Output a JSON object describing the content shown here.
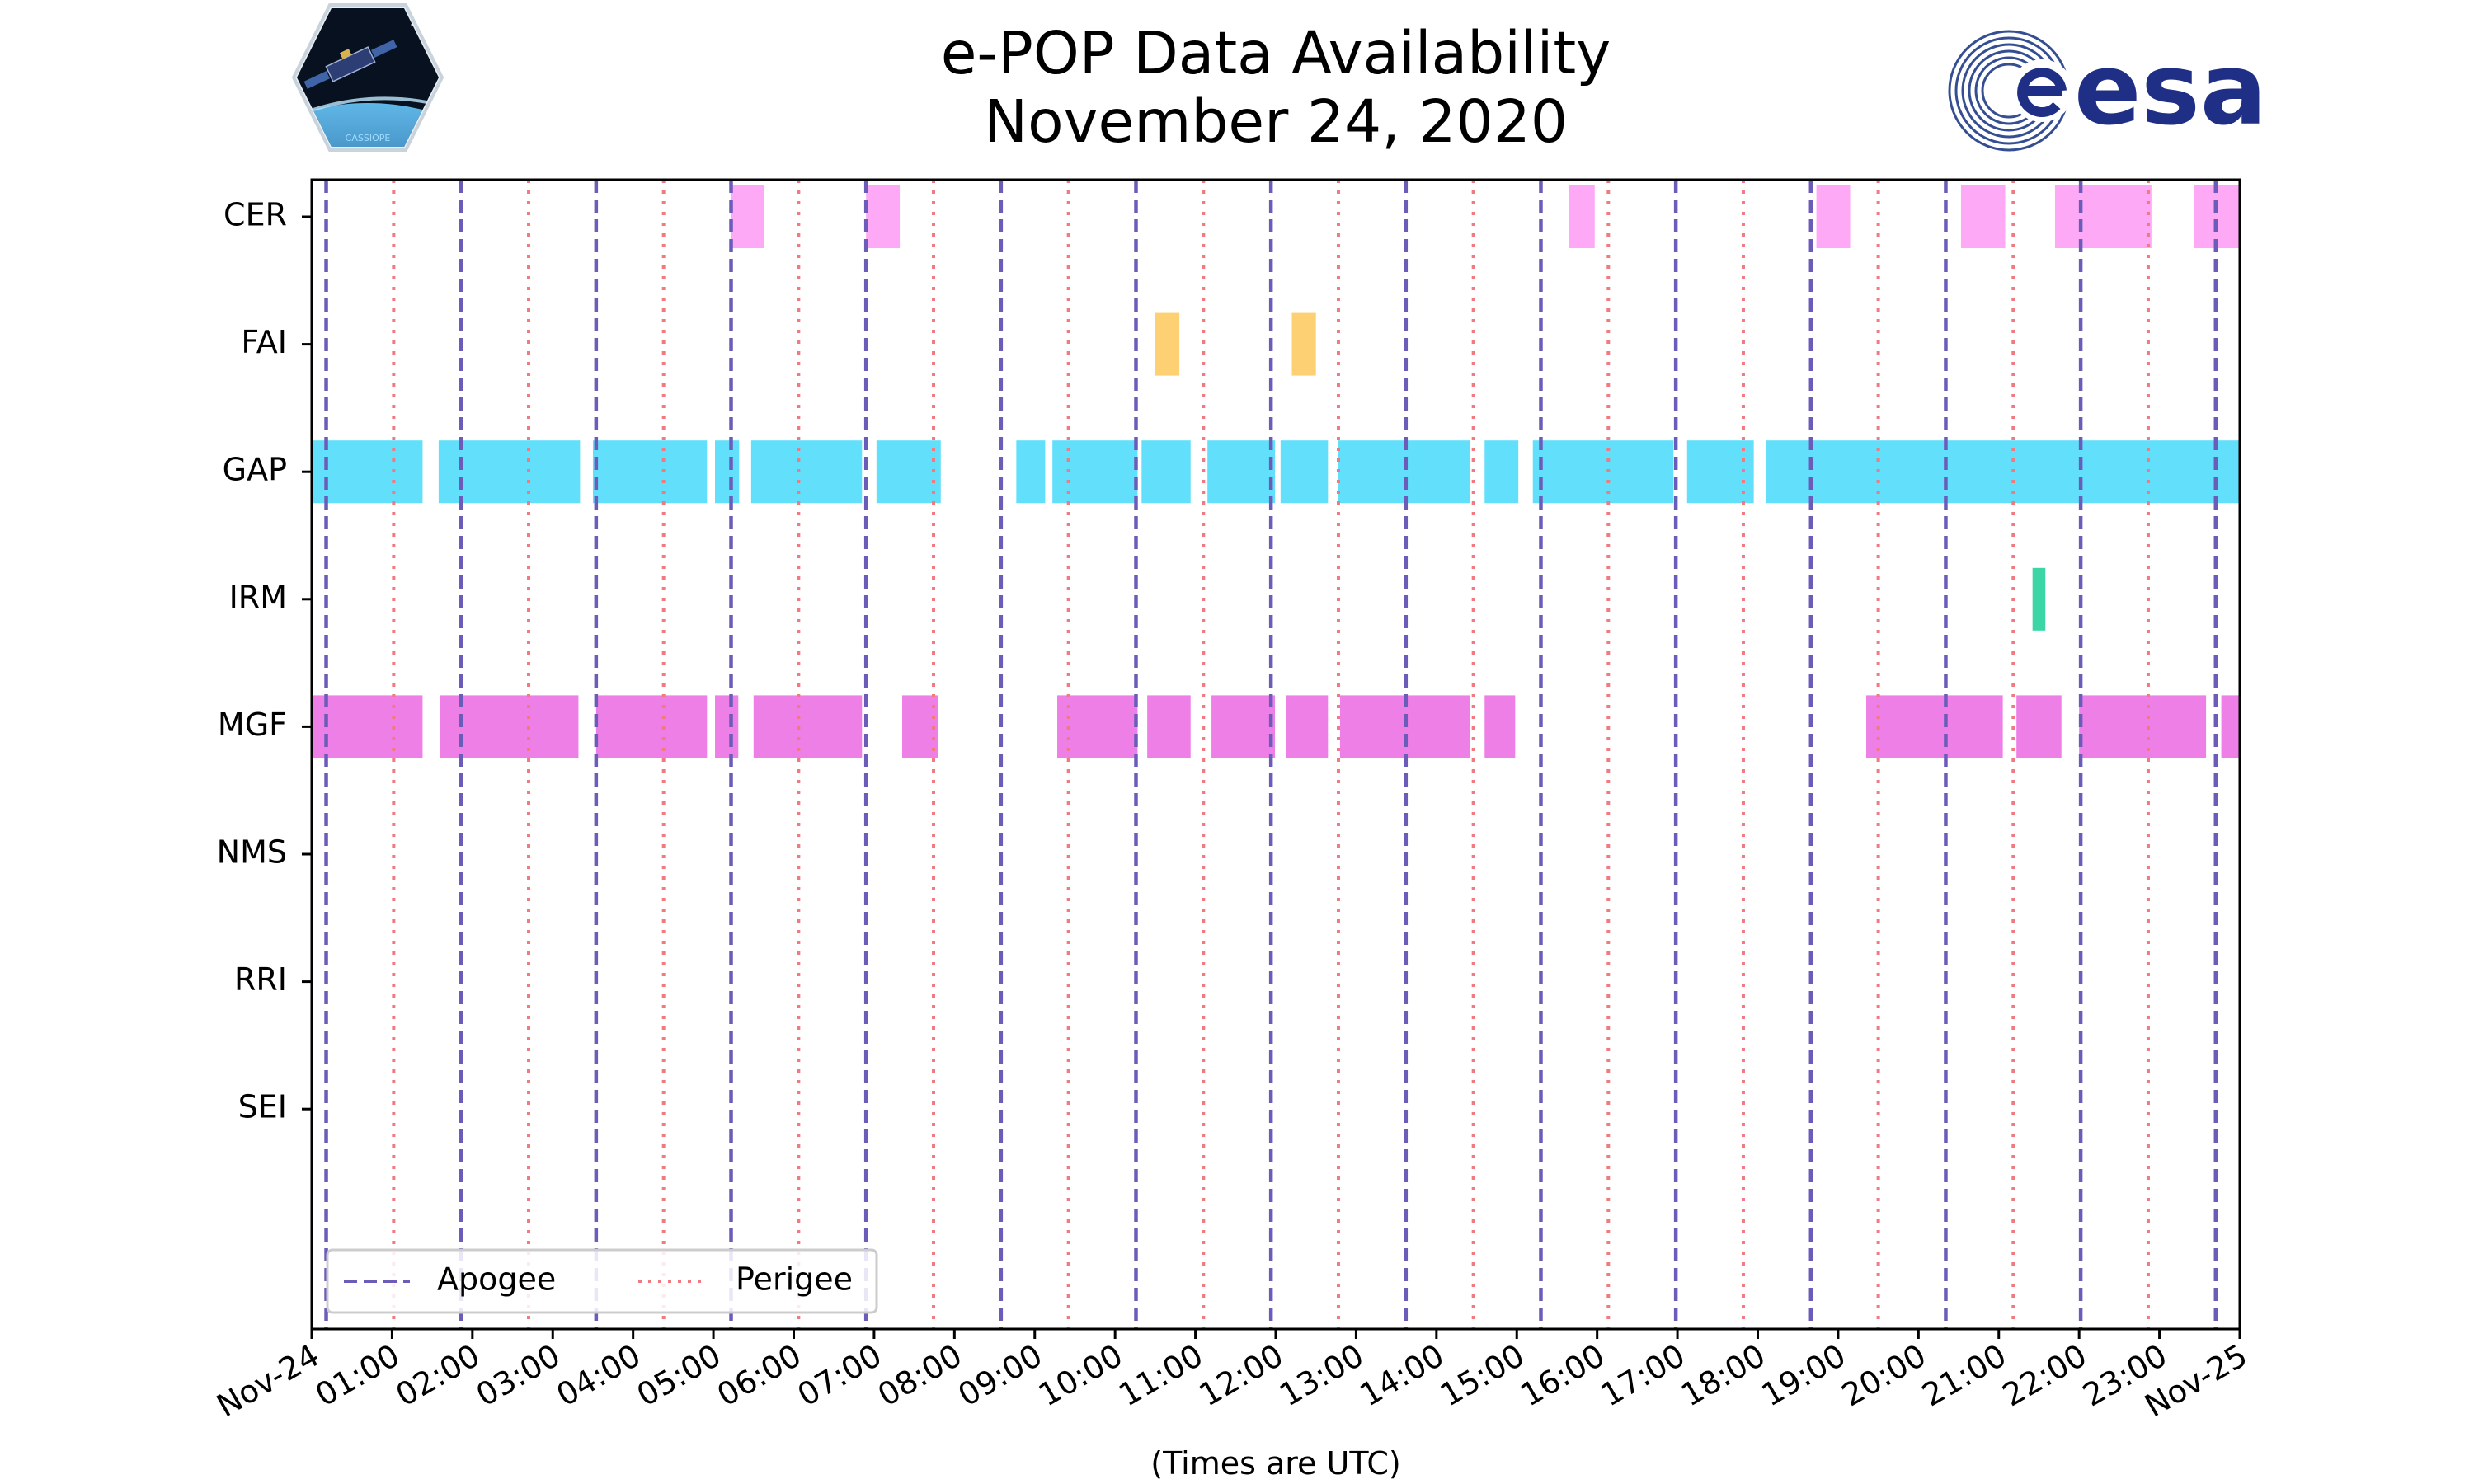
{
  "chart_data": {
    "type": "timeline",
    "title": [
      "e-POP Data Availability",
      "November 24, 2020"
    ],
    "xlabel": "(Times are UTC)",
    "xlim_hours": [
      0,
      24
    ],
    "x_tick_labels": [
      "Nov-24",
      "01:00",
      "02:00",
      "03:00",
      "04:00",
      "05:00",
      "06:00",
      "07:00",
      "08:00",
      "09:00",
      "10:00",
      "11:00",
      "12:00",
      "13:00",
      "14:00",
      "15:00",
      "16:00",
      "17:00",
      "18:00",
      "19:00",
      "20:00",
      "21:00",
      "22:00",
      "23:00",
      "Nov-25"
    ],
    "instruments": [
      "CER",
      "FAI",
      "GAP",
      "IRM",
      "MGF",
      "NMS",
      "RRI",
      "SEI"
    ],
    "colors": {
      "CER": "#fda9f6",
      "FAI": "#fdd173",
      "GAP": "#62dffa",
      "IRM": "#3cd6a6",
      "MGF": "#ee7fe7",
      "apogee": "#6a5cb8",
      "perigee": "#f07a80",
      "axis": "#000000"
    },
    "intervals_hours": {
      "CER": [
        [
          5.22,
          5.63
        ],
        [
          6.9,
          7.32
        ],
        [
          15.65,
          15.97
        ],
        [
          18.73,
          19.15
        ],
        [
          20.53,
          21.08
        ],
        [
          21.7,
          22.9
        ],
        [
          23.43,
          24.0
        ]
      ],
      "FAI": [
        [
          10.5,
          10.8
        ],
        [
          12.2,
          12.5
        ]
      ],
      "GAP": [
        [
          0.0,
          1.38
        ],
        [
          1.58,
          3.34
        ],
        [
          3.5,
          4.92
        ],
        [
          5.02,
          5.32
        ],
        [
          5.47,
          6.85
        ],
        [
          7.03,
          7.83
        ],
        [
          8.77,
          9.13
        ],
        [
          9.22,
          10.28
        ],
        [
          10.33,
          10.94
        ],
        [
          11.15,
          11.99
        ],
        [
          12.06,
          12.65
        ],
        [
          12.77,
          14.42
        ],
        [
          14.6,
          15.02
        ],
        [
          15.2,
          16.95
        ],
        [
          17.12,
          17.95
        ],
        [
          18.1,
          24.0
        ]
      ],
      "IRM": [
        [
          21.42,
          21.58
        ]
      ],
      "MGF": [
        [
          0.0,
          1.38
        ],
        [
          1.6,
          3.32
        ],
        [
          3.54,
          4.92
        ],
        [
          5.02,
          5.31
        ],
        [
          5.5,
          6.85
        ],
        [
          7.35,
          7.8
        ],
        [
          9.28,
          10.28
        ],
        [
          10.4,
          10.94
        ],
        [
          11.2,
          11.99
        ],
        [
          12.13,
          12.65
        ],
        [
          12.8,
          14.42
        ],
        [
          14.6,
          14.98
        ],
        [
          19.35,
          21.05
        ],
        [
          21.22,
          21.78
        ],
        [
          22.0,
          23.58
        ],
        [
          23.77,
          24.0
        ]
      ],
      "NMS": [],
      "RRI": [],
      "SEI": []
    },
    "apogee_hours": [
      0.18,
      1.86,
      3.54,
      5.22,
      6.9,
      8.58,
      10.26,
      11.94,
      13.62,
      15.3,
      16.98,
      18.66,
      20.34,
      22.02,
      23.7
    ],
    "perigee_hours": [
      1.02,
      2.7,
      4.38,
      6.06,
      7.74,
      9.42,
      11.1,
      12.78,
      14.46,
      16.14,
      17.82,
      19.5,
      21.18,
      22.86
    ],
    "legend": {
      "apogee_label": "Apogee",
      "perigee_label": "Perigee",
      "placement": "lower-left"
    },
    "grid": false
  }
}
